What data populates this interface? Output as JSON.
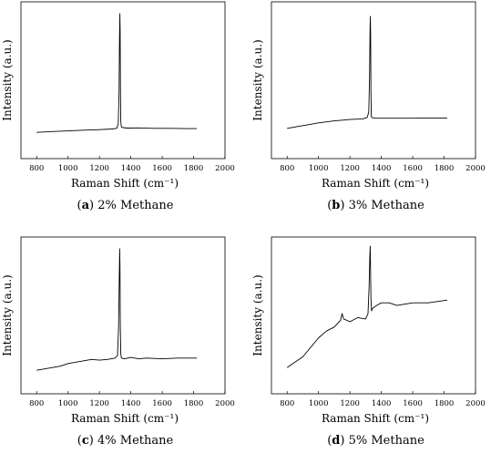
{
  "chart_data": [
    {
      "type": "line",
      "letter": "a",
      "caption": "2% Methane",
      "xlabel": "Raman Shift (cm⁻¹)",
      "ylabel": "Intensity (a.u.)",
      "xticks": [
        800,
        1000,
        1200,
        1400,
        1600,
        1800,
        2000
      ],
      "xlim": [
        700,
        2000
      ],
      "ylim": [
        0,
        1
      ],
      "grid": false,
      "series": [
        {
          "x": [
            800,
            900,
            1000,
            1100,
            1200,
            1280,
            1310,
            1320,
            1325,
            1328,
            1330,
            1332,
            1334,
            1336,
            1340,
            1350,
            1380,
            1450,
            1550,
            1650,
            1750,
            1820
          ],
          "y": [
            0.1,
            0.106,
            0.111,
            0.116,
            0.12,
            0.125,
            0.13,
            0.16,
            0.4,
            0.8,
            0.98,
            0.85,
            0.45,
            0.18,
            0.14,
            0.135,
            0.132,
            0.133,
            0.13,
            0.13,
            0.128,
            0.128
          ]
        }
      ]
    },
    {
      "type": "line",
      "letter": "b",
      "caption": "3% Methane",
      "xlabel": "Raman Shift (cm⁻¹)",
      "ylabel": "Intensity (a.u.)",
      "xticks": [
        800,
        1000,
        1200,
        1400,
        1600,
        1800,
        2000
      ],
      "xlim": [
        700,
        2000
      ],
      "ylim": [
        0,
        1
      ],
      "grid": false,
      "series": [
        {
          "x": [
            800,
            900,
            1000,
            1100,
            1200,
            1280,
            1310,
            1320,
            1325,
            1328,
            1330,
            1332,
            1334,
            1336,
            1340,
            1360,
            1400,
            1500,
            1600,
            1700,
            1820
          ],
          "y": [
            0.13,
            0.15,
            0.17,
            0.185,
            0.195,
            0.2,
            0.21,
            0.25,
            0.5,
            0.85,
            0.96,
            0.8,
            0.42,
            0.22,
            0.21,
            0.205,
            0.205,
            0.205,
            0.205,
            0.207,
            0.207
          ]
        }
      ]
    },
    {
      "type": "line",
      "letter": "c",
      "caption": "4% Methane",
      "xlabel": "Raman Shift (cm⁻¹)",
      "ylabel": "Intensity (a.u.)",
      "xticks": [
        800,
        1000,
        1200,
        1400,
        1600,
        1800,
        2000
      ],
      "xlim": [
        700,
        2000
      ],
      "ylim": [
        0,
        1
      ],
      "grid": false,
      "series": [
        {
          "x": [
            800,
            850,
            900,
            950,
            1000,
            1050,
            1100,
            1150,
            1200,
            1250,
            1300,
            1315,
            1322,
            1326,
            1329,
            1331,
            1333,
            1336,
            1340,
            1360,
            1400,
            1450,
            1500,
            1600,
            1700,
            1820
          ],
          "y": [
            0.08,
            0.09,
            0.1,
            0.11,
            0.13,
            0.14,
            0.15,
            0.16,
            0.155,
            0.16,
            0.17,
            0.19,
            0.4,
            0.75,
            0.98,
            0.85,
            0.4,
            0.2,
            0.17,
            0.165,
            0.175,
            0.165,
            0.17,
            0.165,
            0.17,
            0.17
          ]
        }
      ]
    },
    {
      "type": "line",
      "letter": "d",
      "caption": "5% Methane",
      "xlabel": "Raman Shift (cm⁻¹)",
      "ylabel": "Intensity (a.u.)",
      "xticks": [
        800,
        1000,
        1200,
        1400,
        1600,
        1800,
        2000
      ],
      "xlim": [
        700,
        2000
      ],
      "ylim": [
        0,
        1
      ],
      "grid": false,
      "series": [
        {
          "x": [
            800,
            850,
            900,
            950,
            1000,
            1050,
            1100,
            1140,
            1150,
            1160,
            1200,
            1250,
            1300,
            1315,
            1322,
            1326,
            1329,
            1331,
            1334,
            1338,
            1345,
            1370,
            1400,
            1450,
            1500,
            1600,
            1700,
            1820
          ],
          "y": [
            0.1,
            0.14,
            0.18,
            0.25,
            0.32,
            0.37,
            0.4,
            0.45,
            0.5,
            0.46,
            0.44,
            0.47,
            0.46,
            0.5,
            0.7,
            0.9,
            1.0,
            0.88,
            0.62,
            0.52,
            0.54,
            0.56,
            0.58,
            0.58,
            0.56,
            0.58,
            0.58,
            0.6
          ]
        }
      ]
    }
  ]
}
